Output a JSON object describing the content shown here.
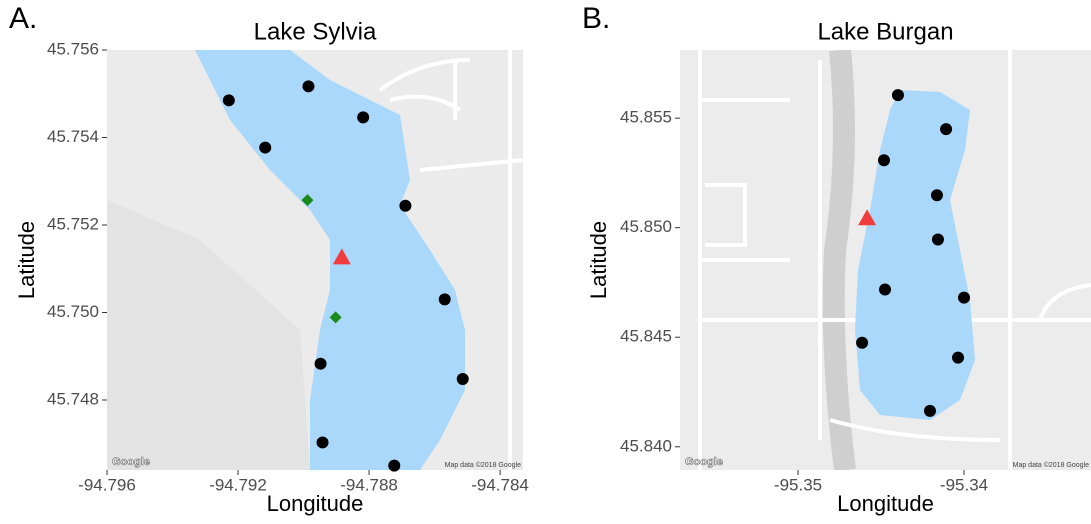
{
  "chart_data": [
    {
      "type": "scatter",
      "panel_label": "A.",
      "title": "Lake Sylvia",
      "xlabel": "Longitude",
      "ylabel": "Latitude",
      "attribution": "Map data ©2018 Google",
      "logo": "Google",
      "xlim": [
        -94.796,
        -94.7833
      ],
      "xticks": [
        -94.796,
        -94.792,
        -94.788,
        -94.784
      ],
      "ylim": [
        45.7464,
        45.756
      ],
      "yticks": [
        {
          "value": 45.748,
          "label": "45.748"
        },
        {
          "value": 45.75,
          "label": "45.750"
        },
        {
          "value": 45.752,
          "label": "45.752"
        },
        {
          "value": 45.754,
          "label": "45.754"
        },
        {
          "value": 45.756,
          "label": "45.756"
        }
      ],
      "series": [
        {
          "color": "#000000",
          "marker": "circle",
          "x": [
            -94.79228,
            -94.78985,
            -94.78818,
            -94.79117,
            -94.78689,
            -94.78569,
            -94.78514,
            -94.78948,
            -94.78942,
            -94.78723
          ],
          "values": [
            45.75485,
            45.75517,
            45.75446,
            45.75377,
            45.75244,
            45.7503,
            45.74848,
            45.74883,
            45.74703,
            45.7465
          ]
        },
        {
          "color": "#1a8a1a",
          "marker": "diamond",
          "x": [
            -94.78988,
            -94.78902
          ],
          "values": [
            45.75257,
            45.74989
          ]
        },
        {
          "color": "#f03c3c",
          "marker": "triangle",
          "x": [
            -94.78883
          ],
          "values": [
            45.75126
          ]
        }
      ]
    },
    {
      "type": "scatter",
      "panel_label": "B.",
      "title": "Lake Burgan",
      "xlabel": "Longitude",
      "ylabel": "Latitude",
      "attribution": "Map data ©2018 Google",
      "logo": "Google",
      "xlim": [
        -95.35711,
        -95.33235
      ],
      "xticks": [
        -95.35,
        -95.34
      ],
      "ylim": [
        45.83894,
        45.85811
      ],
      "yticks": [
        {
          "value": 45.84,
          "label": "45.840"
        },
        {
          "value": 45.845,
          "label": "45.845"
        },
        {
          "value": 45.85,
          "label": "45.850"
        },
        {
          "value": 45.855,
          "label": "45.855"
        }
      ],
      "series": [
        {
          "color": "#000000",
          "marker": "circle",
          "x": [
            -95.34398,
            -95.34108,
            -95.34482,
            -95.34163,
            -95.34157,
            -95.34476,
            -95.34,
            -95.34614,
            -95.34036,
            -95.34205
          ],
          "values": [
            45.85605,
            45.8545,
            45.85308,
            45.85148,
            45.84946,
            45.84718,
            45.84681,
            45.84475,
            45.84407,
            45.84164
          ]
        },
        {
          "color": "#f03c3c",
          "marker": "triangle",
          "x": [
            -95.34584
          ],
          "values": [
            45.85043
          ]
        }
      ]
    }
  ]
}
